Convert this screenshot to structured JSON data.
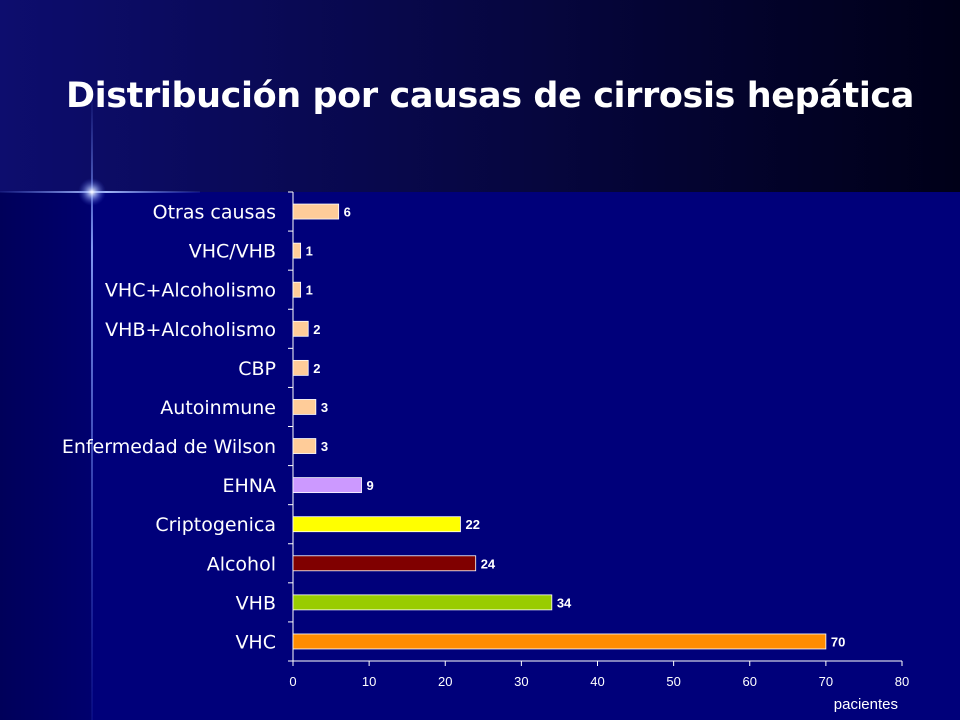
{
  "slide": {
    "title": "Distribución por causas de cirrosis hepática"
  },
  "chart_data": {
    "type": "bar",
    "orientation": "horizontal",
    "title": "Distribución por causas de cirrosis hepática",
    "xlabel": "pacientes",
    "ylabel": "",
    "xlim": [
      0,
      80
    ],
    "x_ticks": [
      0,
      10,
      20,
      30,
      40,
      50,
      60,
      70,
      80
    ],
    "grid": false,
    "legend": "none",
    "categories": [
      "VHC",
      "VHB",
      "Alcohol",
      "Criptogenica",
      "EHNA",
      "Enfermedad de Wilson",
      "Autoinmune",
      "CBP",
      "VHB+Alcoholismo",
      "VHC+Alcoholismo",
      "VHC/VHB",
      "Otras causas"
    ],
    "values": [
      70,
      34,
      24,
      22,
      9,
      3,
      3,
      2,
      2,
      1,
      1,
      6
    ],
    "colors": [
      "#ff8c00",
      "#99cc00",
      "#800000",
      "#ffff00",
      "#cc99ff",
      "#ffcc99",
      "#ffcc99",
      "#ffcc99",
      "#ffcc99",
      "#ffcc99",
      "#ffcc99",
      "#ffcc99"
    ]
  }
}
